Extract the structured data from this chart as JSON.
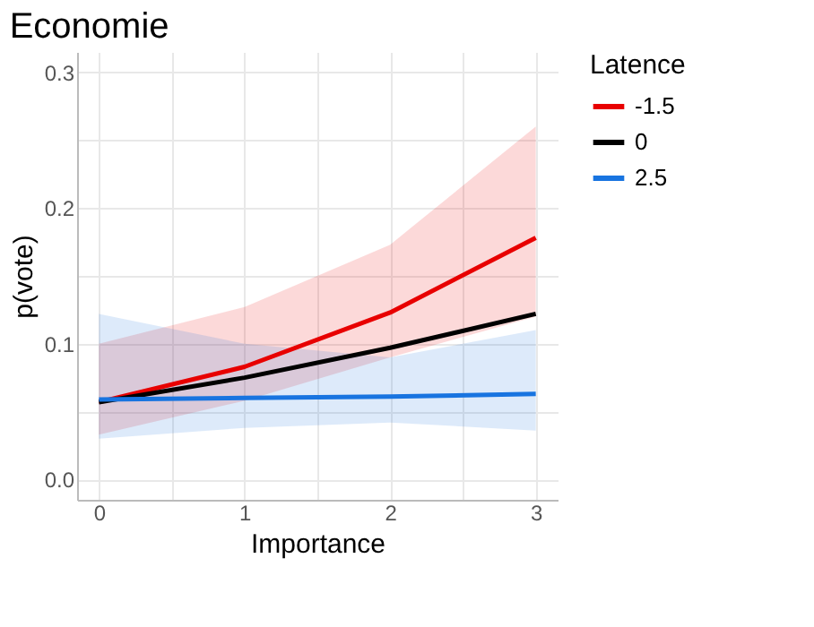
{
  "chart_data": {
    "type": "line",
    "title": "Economie",
    "xlabel": "Importance",
    "ylabel": "p(vote)",
    "legend_title": "Latence",
    "x": [
      0,
      1,
      2,
      3
    ],
    "series": [
      {
        "name": "-1.5",
        "color": "#e80000",
        "values": [
          0.057,
          0.083,
          0.123,
          0.178
        ],
        "lower": [
          0.033,
          0.058,
          0.09,
          0.12
        ],
        "upper": [
          0.1,
          0.127,
          0.173,
          0.26
        ]
      },
      {
        "name": "0",
        "color": "#000000",
        "values": [
          0.057,
          0.075,
          0.097,
          0.122
        ]
      },
      {
        "name": "2.5",
        "color": "#1874e0",
        "values": [
          0.059,
          0.06,
          0.061,
          0.063
        ],
        "lower": [
          0.03,
          0.038,
          0.042,
          0.036
        ],
        "upper": [
          0.122,
          0.1,
          0.09,
          0.11
        ]
      }
    ],
    "xlim": [
      -0.15,
      3.15
    ],
    "ylim": [
      -0.015,
      0.315
    ],
    "xticks": [
      0,
      {
        "value": 0.5,
        "label": null
      },
      1,
      {
        "value": 1.5,
        "label": null
      },
      2,
      {
        "value": 2.5,
        "label": null
      },
      3
    ],
    "yticks": [
      {
        "value": 0,
        "label": "0.0"
      },
      {
        "value": 0.05,
        "label": null
      },
      0.1,
      {
        "value": 0.15,
        "label": null
      },
      0.2,
      {
        "value": 0.25,
        "label": null
      },
      0.3
    ],
    "grid": true,
    "legend": "right",
    "line_style": "solid",
    "marker": "none"
  }
}
